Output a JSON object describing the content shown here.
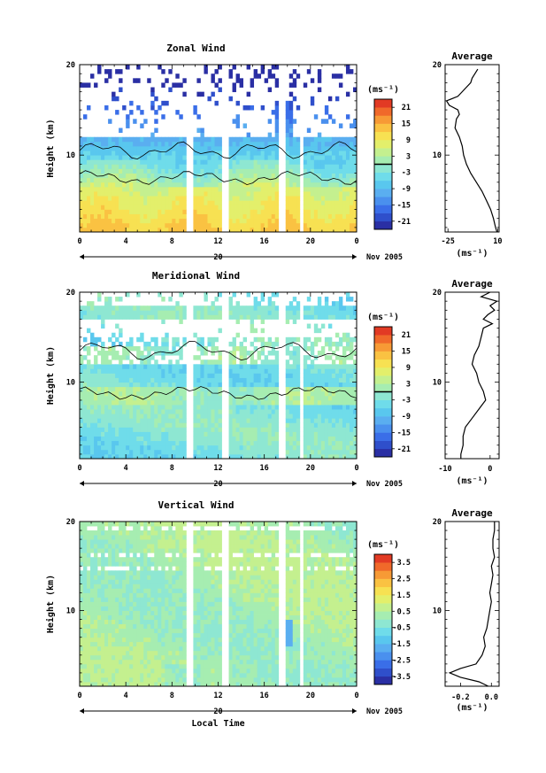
{
  "chart_data": [
    {
      "type": "heatmap",
      "title": "Zonal Wind",
      "xlabel": "",
      "ylabel": "Height (km)",
      "x_ticks": [
        "0",
        "4",
        "8",
        "12",
        "16",
        "20",
        "0"
      ],
      "y_ticks": [
        "10",
        "20"
      ],
      "xlim": [
        0,
        24
      ],
      "ylim": [
        1.5,
        20
      ],
      "date_label": "20",
      "date_suffix": "Nov 2005",
      "colorbar": {
        "unit": "(ms⁻¹)",
        "ticks": [
          "21",
          "15",
          "9",
          "3",
          "-3",
          "-9",
          "-15",
          "-21"
        ],
        "range": [
          -24,
          24
        ],
        "zero_line": true
      },
      "data_gaps_hours": [
        [
          9.3,
          9.9
        ],
        [
          12.3,
          12.8
        ],
        [
          17.3,
          17.9
        ],
        [
          19.0,
          19.4
        ]
      ],
      "average_profile": {
        "title": "Average",
        "xlabel": "(ms⁻¹)",
        "x_ticks": [
          "-25",
          "10"
        ],
        "xlim": [
          -27,
          11
        ],
        "y_ticks": [
          "10",
          "20"
        ],
        "height_km": [
          1.5,
          2,
          3,
          4,
          5,
          6,
          7,
          8,
          9,
          10,
          11,
          12,
          13,
          14,
          14.5,
          15,
          15.5,
          16,
          16.5,
          17,
          17.5,
          18,
          18.5,
          19,
          19.5
        ],
        "values": [
          9.5,
          8.5,
          7,
          5,
          2,
          -1,
          -5,
          -9,
          -12,
          -14,
          -15,
          -17,
          -20,
          -19,
          -17,
          -18,
          -24,
          -26,
          -18,
          -15,
          -12,
          -9,
          -8,
          -6,
          -4
        ]
      }
    },
    {
      "type": "heatmap",
      "title": "Meridional Wind",
      "xlabel": "",
      "ylabel": "Height (km)",
      "x_ticks": [
        "0",
        "4",
        "8",
        "12",
        "16",
        "20",
        "0"
      ],
      "y_ticks": [
        "10",
        "20"
      ],
      "xlim": [
        0,
        24
      ],
      "ylim": [
        1.5,
        20
      ],
      "date_label": "20",
      "date_suffix": "Nov 2005",
      "colorbar": {
        "unit": "(ms⁻¹)",
        "ticks": [
          "21",
          "15",
          "9",
          "3",
          "-3",
          "-9",
          "-15",
          "-21"
        ],
        "range": [
          -24,
          24
        ],
        "zero_line": true
      },
      "data_gaps_hours": [
        [
          9.3,
          9.9
        ],
        [
          12.3,
          12.8
        ],
        [
          17.3,
          17.9
        ],
        [
          19.0,
          19.4
        ]
      ],
      "average_profile": {
        "title": "Average",
        "xlabel": "(ms⁻¹)",
        "x_ticks": [
          "-10",
          "0"
        ],
        "xlim": [
          -10,
          2
        ],
        "y_ticks": [
          "10",
          "20"
        ],
        "height_km": [
          1.5,
          2,
          3,
          4,
          5,
          6,
          7,
          8,
          9,
          10,
          11,
          12,
          13,
          14,
          15,
          16,
          16.5,
          17,
          17.5,
          18,
          18.5,
          19,
          19.5,
          20
        ],
        "values": [
          -6.5,
          -6.5,
          -6,
          -6,
          -5.5,
          -4,
          -2.5,
          -1,
          -1.5,
          -2.5,
          -3,
          -4,
          -3.5,
          -2.5,
          -2,
          -1.5,
          0.5,
          -1.5,
          -0.5,
          1,
          0,
          1.5,
          -2,
          0
        ]
      }
    },
    {
      "type": "heatmap",
      "title": "Vertical Wind",
      "xlabel": "Local Time",
      "ylabel": "Height (km)",
      "x_ticks": [
        "0",
        "4",
        "8",
        "12",
        "16",
        "20",
        "0"
      ],
      "y_ticks": [
        "10",
        "20"
      ],
      "xlim": [
        0,
        24
      ],
      "ylim": [
        1.5,
        20
      ],
      "date_label": "20",
      "date_suffix": "Nov 2005",
      "colorbar": {
        "unit": "(ms⁻¹)",
        "ticks": [
          "3.5",
          "2.5",
          "1.5",
          "0.5",
          "-0.5",
          "-1.5",
          "-2.5",
          "-3.5"
        ],
        "range": [
          -4,
          4
        ],
        "zero_line": false
      },
      "data_gaps_hours": [
        [
          9.3,
          9.9
        ],
        [
          12.3,
          12.8
        ],
        [
          17.3,
          17.9
        ],
        [
          19.0,
          19.4
        ]
      ],
      "average_profile": {
        "title": "Average",
        "xlabel": "(ms⁻¹)",
        "x_ticks": [
          "-0.2",
          "0.0"
        ],
        "xlim": [
          -0.3,
          0.05
        ],
        "y_ticks": [
          "10",
          "20"
        ],
        "height_km": [
          1.5,
          2,
          2.5,
          3,
          3.5,
          4,
          5,
          6,
          7,
          8,
          9,
          10,
          11,
          12,
          13,
          14,
          15,
          16,
          17,
          18,
          19,
          20
        ],
        "values": [
          -0.02,
          -0.08,
          -0.2,
          -0.27,
          -0.2,
          -0.1,
          -0.06,
          -0.04,
          -0.05,
          -0.03,
          -0.02,
          -0.01,
          0.0,
          -0.01,
          0.0,
          0.01,
          0.0,
          0.02,
          0.01,
          0.01,
          0.02,
          0.02
        ]
      }
    }
  ]
}
